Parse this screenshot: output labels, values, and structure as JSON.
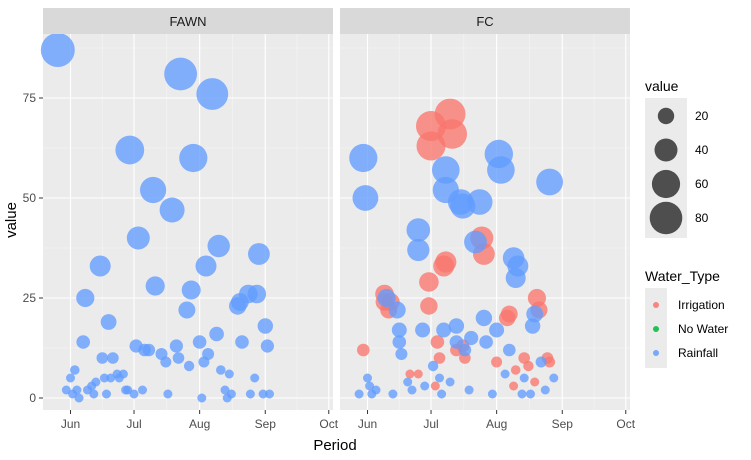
{
  "chart_data": {
    "type": "scatter",
    "subtype": "faceted-bubble",
    "xlabel": "Period",
    "ylabel": "value",
    "x_ticks": [
      {
        "date": "2020-06-01",
        "label": "Jun"
      },
      {
        "date": "2020-07-01",
        "label": "Jul"
      },
      {
        "date": "2020-08-01",
        "label": "Aug"
      },
      {
        "date": "2020-09-01",
        "label": "Sep"
      },
      {
        "date": "2020-10-01",
        "label": "Oct"
      }
    ],
    "xlim": [
      "2020-05-19",
      "2020-10-03"
    ],
    "y_ticks": [
      0,
      25,
      50,
      75
    ],
    "ylim": [
      -3,
      91
    ],
    "grid": true,
    "panel_background": "#EBEBEB",
    "legend_position": "right",
    "size_legend": {
      "title": "value",
      "breaks": [
        20,
        40,
        60,
        80
      ]
    },
    "color_legend": {
      "title": "Water_Type",
      "entries": [
        {
          "label": "Irrigation",
          "color": "#F8766D"
        },
        {
          "label": "No Water",
          "color": "#00BA38"
        },
        {
          "label": "Rainfall",
          "color": "#619CFF"
        }
      ]
    },
    "facets": [
      {
        "label": "FAWN",
        "series": [
          {
            "type": "Rainfall",
            "points": [
              [
                "2020-05-26",
                87
              ],
              [
                "2020-06-01",
                5
              ],
              [
                "2020-06-03",
                7
              ],
              [
                "2020-06-04",
                2
              ],
              [
                "2020-06-07",
                14
              ],
              [
                "2020-06-08",
                25
              ],
              [
                "2020-06-09",
                2
              ],
              [
                "2020-06-11",
                3
              ],
              [
                "2020-06-13",
                4
              ],
              [
                "2020-06-15",
                33
              ],
              [
                "2020-06-16",
                10
              ],
              [
                "2020-06-17",
                5
              ],
              [
                "2020-06-19",
                19
              ],
              [
                "2020-06-20",
                5
              ],
              [
                "2020-06-21",
                10
              ],
              [
                "2020-06-23",
                6
              ],
              [
                "2020-06-24",
                5
              ],
              [
                "2020-06-26",
                6
              ],
              [
                "2020-06-27",
                2
              ],
              [
                "2020-06-28",
                2
              ],
              [
                "2020-06-29",
                62
              ],
              [
                "2020-07-02",
                13
              ],
              [
                "2020-07-03",
                40
              ],
              [
                "2020-07-06",
                12
              ],
              [
                "2020-07-08",
                12
              ],
              [
                "2020-07-10",
                52
              ],
              [
                "2020-07-11",
                28
              ],
              [
                "2020-07-14",
                11
              ],
              [
                "2020-07-16",
                9
              ],
              [
                "2020-07-19",
                47
              ],
              [
                "2020-07-21",
                13
              ],
              [
                "2020-07-22",
                10
              ],
              [
                "2020-07-23",
                81
              ],
              [
                "2020-07-26",
                22
              ],
              [
                "2020-07-27",
                8
              ],
              [
                "2020-07-28",
                27
              ],
              [
                "2020-07-29",
                60
              ],
              [
                "2020-08-01",
                14
              ],
              [
                "2020-08-03",
                9
              ],
              [
                "2020-08-04",
                33
              ],
              [
                "2020-08-05",
                11
              ],
              [
                "2020-08-07",
                76
              ],
              [
                "2020-08-09",
                16
              ],
              [
                "2020-08-10",
                38
              ],
              [
                "2020-08-11",
                7
              ],
              [
                "2020-08-13",
                2
              ],
              [
                "2020-08-15",
                6
              ],
              [
                "2020-08-19",
                23
              ],
              [
                "2020-08-20",
                24
              ],
              [
                "2020-08-21",
                14
              ],
              [
                "2020-08-24",
                26
              ],
              [
                "2020-08-28",
                26
              ],
              [
                "2020-08-29",
                36
              ],
              [
                "2020-09-01",
                18
              ],
              [
                "2020-09-02",
                13
              ],
              [
                "2020-06-02",
                1
              ],
              [
                "2020-06-05",
                0
              ],
              [
                "2020-06-18",
                1
              ],
              [
                "2020-07-05",
                2
              ],
              [
                "2020-07-17",
                1
              ],
              [
                "2020-08-02",
                0
              ],
              [
                "2020-08-14",
                0
              ],
              [
                "2020-08-25",
                1
              ],
              [
                "2020-09-03",
                1
              ],
              [
                "2020-05-30",
                2
              ],
              [
                "2020-06-12",
                1
              ],
              [
                "2020-07-01",
                1
              ],
              [
                "2020-08-16",
                1
              ],
              [
                "2020-08-27",
                5
              ],
              [
                "2020-08-31",
                1
              ]
            ]
          }
        ]
      },
      {
        "label": "FC",
        "series": [
          {
            "type": "Irrigation",
            "points": [
              [
                "2020-05-30",
                12
              ],
              [
                "2020-06-09",
                26
              ],
              [
                "2020-06-09",
                24
              ],
              [
                "2020-06-11",
                22
              ],
              [
                "2020-06-12",
                24
              ],
              [
                "2020-06-25",
                6
              ],
              [
                "2020-06-30",
                23
              ],
              [
                "2020-06-30",
                29
              ],
              [
                "2020-07-01",
                68
              ],
              [
                "2020-07-01",
                63
              ],
              [
                "2020-07-04",
                14
              ],
              [
                "2020-07-05",
                10
              ],
              [
                "2020-07-07",
                33
              ],
              [
                "2020-07-08",
                34
              ],
              [
                "2020-07-10",
                71
              ],
              [
                "2020-07-11",
                66
              ],
              [
                "2020-07-13",
                12
              ],
              [
                "2020-07-16",
                13
              ],
              [
                "2020-07-17",
                10
              ],
              [
                "2020-07-25",
                40
              ],
              [
                "2020-07-26",
                36
              ],
              [
                "2020-08-01",
                9
              ],
              [
                "2020-08-06",
                20
              ],
              [
                "2020-08-07",
                21
              ],
              [
                "2020-08-10",
                7
              ],
              [
                "2020-08-14",
                10
              ],
              [
                "2020-08-16",
                8
              ],
              [
                "2020-08-20",
                25
              ],
              [
                "2020-08-21",
                22
              ],
              [
                "2020-08-25",
                10
              ],
              [
                "2020-08-26",
                9
              ],
              [
                "2020-06-21",
                6
              ],
              [
                "2020-07-03",
                3
              ],
              [
                "2020-08-09",
                3
              ],
              [
                "2020-08-19",
                4
              ]
            ]
          },
          {
            "type": "Rainfall",
            "points": [
              [
                "2020-05-30",
                60
              ],
              [
                "2020-05-31",
                50
              ],
              [
                "2020-06-01",
                5
              ],
              [
                "2020-06-02",
                3
              ],
              [
                "2020-06-05",
                2
              ],
              [
                "2020-06-10",
                25
              ],
              [
                "2020-06-15",
                22
              ],
              [
                "2020-06-16",
                17
              ],
              [
                "2020-06-16",
                14
              ],
              [
                "2020-06-17",
                11
              ],
              [
                "2020-06-20",
                4
              ],
              [
                "2020-06-25",
                37
              ],
              [
                "2020-06-25",
                42
              ],
              [
                "2020-06-27",
                17
              ],
              [
                "2020-07-02",
                8
              ],
              [
                "2020-07-05",
                5
              ],
              [
                "2020-07-07",
                17
              ],
              [
                "2020-07-08",
                57
              ],
              [
                "2020-07-08",
                52
              ],
              [
                "2020-07-13",
                14
              ],
              [
                "2020-07-13",
                18
              ],
              [
                "2020-07-15",
                49
              ],
              [
                "2020-07-16",
                48
              ],
              [
                "2020-07-17",
                12
              ],
              [
                "2020-07-20",
                15
              ],
              [
                "2020-07-22",
                39
              ],
              [
                "2020-07-24",
                49
              ],
              [
                "2020-07-26",
                20
              ],
              [
                "2020-07-27",
                14
              ],
              [
                "2020-08-01",
                17
              ],
              [
                "2020-08-02",
                61
              ],
              [
                "2020-08-03",
                57
              ],
              [
                "2020-08-05",
                6
              ],
              [
                "2020-08-07",
                12
              ],
              [
                "2020-08-09",
                35
              ],
              [
                "2020-08-10",
                30
              ],
              [
                "2020-08-11",
                33
              ],
              [
                "2020-08-14",
                5
              ],
              [
                "2020-08-18",
                18
              ],
              [
                "2020-08-19",
                21
              ],
              [
                "2020-08-22",
                9
              ],
              [
                "2020-08-26",
                54
              ],
              [
                "2020-08-28",
                5
              ],
              [
                "2020-06-03",
                1
              ],
              [
                "2020-06-13",
                1
              ],
              [
                "2020-06-22",
                2
              ],
              [
                "2020-07-06",
                1
              ],
              [
                "2020-07-19",
                2
              ],
              [
                "2020-07-30",
                1
              ],
              [
                "2020-08-13",
                1
              ],
              [
                "2020-08-24",
                2
              ],
              [
                "2020-06-28",
                3
              ],
              [
                "2020-07-10",
                4
              ],
              [
                "2020-08-17",
                1
              ],
              [
                "2020-05-28",
                1
              ]
            ]
          }
        ]
      }
    ]
  }
}
